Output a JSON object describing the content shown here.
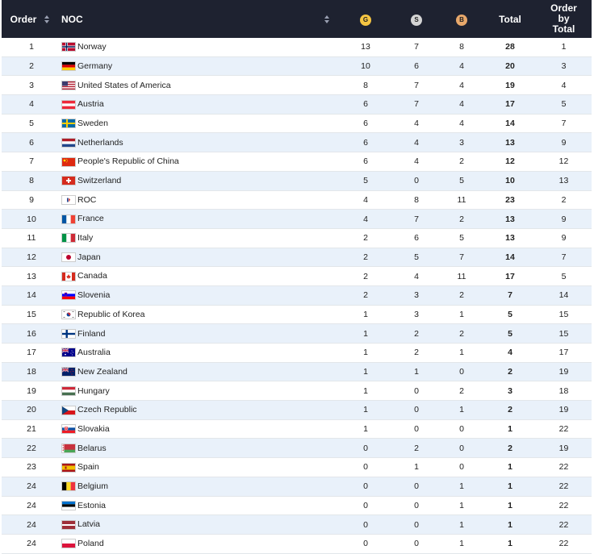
{
  "header": {
    "order": "Order",
    "noc": "NOC",
    "gold": "G",
    "silver": "S",
    "bronze": "B",
    "total": "Total",
    "order_by_total": [
      "Order",
      "by",
      "Total"
    ]
  },
  "colors": {
    "header_bg": "#1e2230",
    "gold": "#f5c542",
    "silver": "#d4d4d4",
    "bronze": "#e8a86b",
    "row_alt": "#e9f1fa"
  },
  "rows": [
    {
      "order": "1",
      "noc": "Norway",
      "flag": "norway-flag",
      "g": "13",
      "s": "7",
      "b": "8",
      "total": "28",
      "rank": "1"
    },
    {
      "order": "2",
      "noc": "Germany",
      "flag": "germany-flag",
      "g": "10",
      "s": "6",
      "b": "4",
      "total": "20",
      "rank": "3"
    },
    {
      "order": "3",
      "noc": "United States of America",
      "flag": "usa-flag",
      "g": "8",
      "s": "7",
      "b": "4",
      "total": "19",
      "rank": "4"
    },
    {
      "order": "4",
      "noc": "Austria",
      "flag": "austria-flag",
      "g": "6",
      "s": "7",
      "b": "4",
      "total": "17",
      "rank": "5"
    },
    {
      "order": "5",
      "noc": "Sweden",
      "flag": "sweden-flag",
      "g": "6",
      "s": "4",
      "b": "4",
      "total": "14",
      "rank": "7"
    },
    {
      "order": "6",
      "noc": "Netherlands",
      "flag": "netherlands-flag",
      "g": "6",
      "s": "4",
      "b": "3",
      "total": "13",
      "rank": "9"
    },
    {
      "order": "7",
      "noc": "People's Republic of China",
      "flag": "china-flag",
      "g": "6",
      "s": "4",
      "b": "2",
      "total": "12",
      "rank": "12"
    },
    {
      "order": "8",
      "noc": "Switzerland",
      "flag": "switzerland-flag",
      "g": "5",
      "s": "0",
      "b": "5",
      "total": "10",
      "rank": "13"
    },
    {
      "order": "9",
      "noc": "ROC",
      "flag": "roc-flag",
      "g": "4",
      "s": "8",
      "b": "11",
      "total": "23",
      "rank": "2"
    },
    {
      "order": "10",
      "noc": "France",
      "flag": "france-flag",
      "g": "4",
      "s": "7",
      "b": "2",
      "total": "13",
      "rank": "9"
    },
    {
      "order": "11",
      "noc": "Italy",
      "flag": "italy-flag",
      "g": "2",
      "s": "6",
      "b": "5",
      "total": "13",
      "rank": "9"
    },
    {
      "order": "12",
      "noc": "Japan",
      "flag": "japan-flag",
      "g": "2",
      "s": "5",
      "b": "7",
      "total": "14",
      "rank": "7"
    },
    {
      "order": "13",
      "noc": "Canada",
      "flag": "canada-flag",
      "g": "2",
      "s": "4",
      "b": "11",
      "total": "17",
      "rank": "5"
    },
    {
      "order": "14",
      "noc": "Slovenia",
      "flag": "slovenia-flag",
      "g": "2",
      "s": "3",
      "b": "2",
      "total": "7",
      "rank": "14"
    },
    {
      "order": "15",
      "noc": "Republic of Korea",
      "flag": "korea-flag",
      "g": "1",
      "s": "3",
      "b": "1",
      "total": "5",
      "rank": "15"
    },
    {
      "order": "16",
      "noc": "Finland",
      "flag": "finland-flag",
      "g": "1",
      "s": "2",
      "b": "2",
      "total": "5",
      "rank": "15"
    },
    {
      "order": "17",
      "noc": "Australia",
      "flag": "australia-flag",
      "g": "1",
      "s": "2",
      "b": "1",
      "total": "4",
      "rank": "17"
    },
    {
      "order": "18",
      "noc": "New Zealand",
      "flag": "new-zealand-flag",
      "g": "1",
      "s": "1",
      "b": "0",
      "total": "2",
      "rank": "19"
    },
    {
      "order": "19",
      "noc": "Hungary",
      "flag": "hungary-flag",
      "g": "1",
      "s": "0",
      "b": "2",
      "total": "3",
      "rank": "18"
    },
    {
      "order": "20",
      "noc": "Czech Republic",
      "flag": "czech-flag",
      "g": "1",
      "s": "0",
      "b": "1",
      "total": "2",
      "rank": "19"
    },
    {
      "order": "21",
      "noc": "Slovakia",
      "flag": "slovakia-flag",
      "g": "1",
      "s": "0",
      "b": "0",
      "total": "1",
      "rank": "22"
    },
    {
      "order": "22",
      "noc": "Belarus",
      "flag": "belarus-flag",
      "g": "0",
      "s": "2",
      "b": "0",
      "total": "2",
      "rank": "19"
    },
    {
      "order": "23",
      "noc": "Spain",
      "flag": "spain-flag",
      "g": "0",
      "s": "1",
      "b": "0",
      "total": "1",
      "rank": "22"
    },
    {
      "order": "24",
      "noc": "Belgium",
      "flag": "belgium-flag",
      "g": "0",
      "s": "0",
      "b": "1",
      "total": "1",
      "rank": "22"
    },
    {
      "order": "24",
      "noc": "Estonia",
      "flag": "estonia-flag",
      "g": "0",
      "s": "0",
      "b": "1",
      "total": "1",
      "rank": "22"
    },
    {
      "order": "24",
      "noc": "Latvia",
      "flag": "latvia-flag",
      "g": "0",
      "s": "0",
      "b": "1",
      "total": "1",
      "rank": "22"
    },
    {
      "order": "24",
      "noc": "Poland",
      "flag": "poland-flag",
      "g": "0",
      "s": "0",
      "b": "1",
      "total": "1",
      "rank": "22"
    }
  ]
}
